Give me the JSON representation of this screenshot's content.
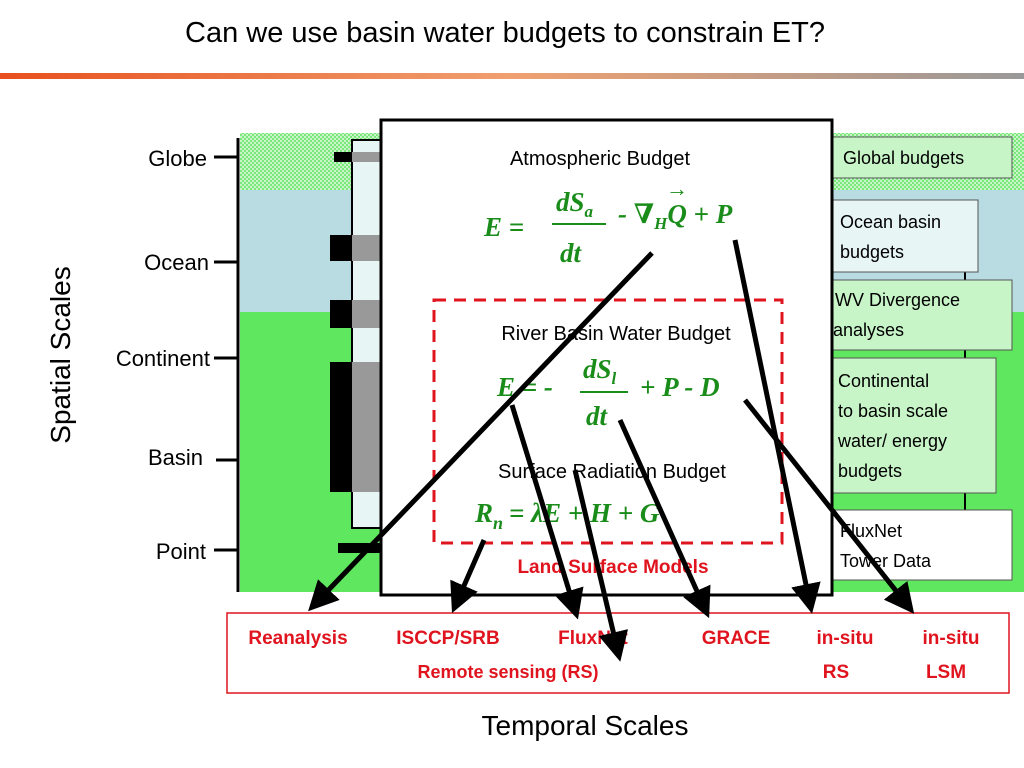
{
  "header": {
    "title": "Can we use basin water budgets to constrain ET?"
  },
  "axes": {
    "y_label": "Spatial Scales",
    "y_ticks": [
      "Globe",
      "Ocean",
      "Continent",
      "Basin",
      "Point"
    ],
    "x_label": "Temporal Scales"
  },
  "budgets": {
    "atmospheric": {
      "title": "Atmospheric Budget",
      "equation": {
        "lhs": "E =",
        "numerator": "dS",
        "numerator_sub": "a",
        "denominator": "dt",
        "operator": "- ∇",
        "operator_sub": "H",
        "tail": "Q + P",
        "vector": "→"
      }
    },
    "river_basin": {
      "title": "River Basin Water Budget",
      "equation": {
        "lhs": "E = -",
        "numerator": "dS",
        "numerator_sub": "l",
        "denominator": "dt",
        "tail": "+ P - D"
      }
    },
    "surface_radiation": {
      "title": "Surface Radiation Budget",
      "equation": {
        "lhs": "R",
        "lhs_sub": "n",
        "tail": "= λE + H + G"
      }
    },
    "land_surface": "Land Surface Models"
  },
  "scale_boxes": [
    {
      "lines": [
        "Global budgets"
      ]
    },
    {
      "lines": [
        "Ocean basin",
        "budgets"
      ]
    },
    {
      "lines": [
        "WV Divergence",
        "analyses"
      ]
    },
    {
      "lines": [
        "Continental",
        "to basin scale",
        "water/ energy",
        "budgets"
      ]
    },
    {
      "lines": [
        "FluxNet",
        "Tower Data"
      ]
    }
  ],
  "products": {
    "items": [
      {
        "lines": [
          "Reanalysis"
        ]
      },
      {
        "lines": [
          "ISCCP/SRB"
        ]
      },
      {
        "lines": [
          "FluxNet"
        ]
      },
      {
        "lines": [
          "GRACE"
        ]
      },
      {
        "lines": [
          "in-situ",
          "RS"
        ]
      },
      {
        "lines": [
          "in-situ",
          "LSM"
        ]
      }
    ],
    "group_label": "Remote sensing (RS)"
  }
}
